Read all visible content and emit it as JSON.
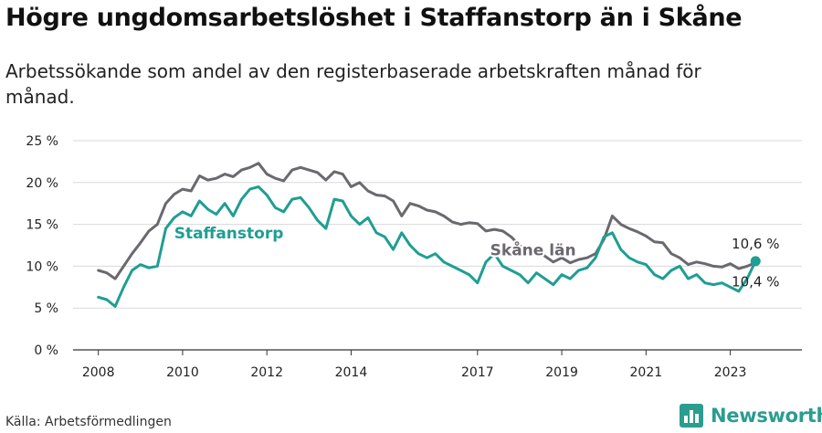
{
  "chart_data": {
    "type": "line",
    "title": "Högre ungdomsarbetslöshet i Staffanstorp än i Skåne",
    "subtitle": "Arbetssökande som andel av den registerbaserade arbetskraften månad för månad.",
    "xlabel": "",
    "ylabel": "",
    "ylim": [
      0,
      25
    ],
    "xlim": [
      2007.4,
      2024.7
    ],
    "y_ticks": [
      0,
      5,
      10,
      15,
      20,
      25
    ],
    "y_tick_labels": [
      "0 %",
      "5 %",
      "10 %",
      "15 %",
      "20 %",
      "25 %"
    ],
    "x_ticks": [
      2008,
      2010,
      2012,
      2014,
      2017,
      2019,
      2021,
      2023
    ],
    "x_tick_labels": [
      "2008",
      "2010",
      "2012",
      "2014",
      "2017",
      "2019",
      "2021",
      "2023"
    ],
    "grid": true,
    "series": [
      {
        "name": "Skåne län",
        "color": "#6b686e",
        "end_label": "10,4 %",
        "x": [
          2008.0,
          2008.2,
          2008.4,
          2008.6,
          2008.8,
          2009.0,
          2009.2,
          2009.4,
          2009.6,
          2009.8,
          2010.0,
          2010.2,
          2010.4,
          2010.6,
          2010.8,
          2011.0,
          2011.2,
          2011.4,
          2011.6,
          2011.8,
          2012.0,
          2012.2,
          2012.4,
          2012.6,
          2012.8,
          2013.0,
          2013.2,
          2013.4,
          2013.6,
          2013.8,
          2014.0,
          2014.2,
          2014.4,
          2014.6,
          2014.8,
          2015.0,
          2015.2,
          2015.4,
          2015.6,
          2015.8,
          2016.0,
          2016.2,
          2016.4,
          2016.6,
          2016.8,
          2017.0,
          2017.2,
          2017.4,
          2017.6,
          2017.8,
          2018.0,
          2018.2,
          2018.4,
          2018.6,
          2018.8,
          2019.0,
          2019.2,
          2019.4,
          2019.6,
          2019.8,
          2020.0,
          2020.2,
          2020.4,
          2020.6,
          2020.8,
          2021.0,
          2021.2,
          2021.4,
          2021.6,
          2021.8,
          2022.0,
          2022.2,
          2022.4,
          2022.6,
          2022.8,
          2023.0,
          2023.2,
          2023.4,
          2023.6
        ],
        "values": [
          9.5,
          9.2,
          8.5,
          10.0,
          11.5,
          12.8,
          14.2,
          15.0,
          17.5,
          18.6,
          19.2,
          19.0,
          20.8,
          20.3,
          20.5,
          21.0,
          20.7,
          21.5,
          21.8,
          22.3,
          21.0,
          20.5,
          20.2,
          21.5,
          21.8,
          21.5,
          21.2,
          20.3,
          21.3,
          21.0,
          19.5,
          20.0,
          19.0,
          18.5,
          18.4,
          17.8,
          16.0,
          17.5,
          17.2,
          16.7,
          16.5,
          16.0,
          15.3,
          15.0,
          15.2,
          15.1,
          14.2,
          14.4,
          14.2,
          13.5,
          12.5,
          11.5,
          11.8,
          11.2,
          10.5,
          11.0,
          10.4,
          10.8,
          11.0,
          11.5,
          13.2,
          16.0,
          15.0,
          14.5,
          14.1,
          13.6,
          12.9,
          12.8,
          11.5,
          11.0,
          10.2,
          10.5,
          10.3,
          10.0,
          9.9,
          10.3,
          9.7,
          10.0,
          10.4
        ]
      },
      {
        "name": "Staffanstorp",
        "color": "#1f9e94",
        "end_label": "10,6 %",
        "x": [
          2008.0,
          2008.2,
          2008.4,
          2008.6,
          2008.8,
          2009.0,
          2009.2,
          2009.4,
          2009.6,
          2009.8,
          2010.0,
          2010.2,
          2010.4,
          2010.6,
          2010.8,
          2011.0,
          2011.2,
          2011.4,
          2011.6,
          2011.8,
          2012.0,
          2012.2,
          2012.4,
          2012.6,
          2012.8,
          2013.0,
          2013.2,
          2013.4,
          2013.6,
          2013.8,
          2014.0,
          2014.2,
          2014.4,
          2014.6,
          2014.8,
          2015.0,
          2015.2,
          2015.4,
          2015.6,
          2015.8,
          2016.0,
          2016.2,
          2016.4,
          2016.6,
          2016.8,
          2017.0,
          2017.2,
          2017.4,
          2017.6,
          2017.8,
          2018.0,
          2018.2,
          2018.4,
          2018.6,
          2018.8,
          2019.0,
          2019.2,
          2019.4,
          2019.6,
          2019.8,
          2020.0,
          2020.2,
          2020.4,
          2020.6,
          2020.8,
          2021.0,
          2021.2,
          2021.4,
          2021.6,
          2021.8,
          2022.0,
          2022.2,
          2022.4,
          2022.6,
          2022.8,
          2023.0,
          2023.2,
          2023.4,
          2023.6
        ],
        "values": [
          6.3,
          6.0,
          5.2,
          7.5,
          9.5,
          10.2,
          9.8,
          10.0,
          14.5,
          15.8,
          16.5,
          16.0,
          17.8,
          16.8,
          16.2,
          17.5,
          16.0,
          18.0,
          19.2,
          19.5,
          18.5,
          17.0,
          16.5,
          18.0,
          18.2,
          17.0,
          15.5,
          14.5,
          18.0,
          17.8,
          16.0,
          15.0,
          15.8,
          14.0,
          13.5,
          12.0,
          14.0,
          12.5,
          11.5,
          11.0,
          11.5,
          10.5,
          10.0,
          9.5,
          9.0,
          8.0,
          10.5,
          11.5,
          10.0,
          9.5,
          9.0,
          8.0,
          9.2,
          8.5,
          7.8,
          9.0,
          8.5,
          9.5,
          9.8,
          11.0,
          13.5,
          14.0,
          12.0,
          11.0,
          10.5,
          10.2,
          9.0,
          8.5,
          9.5,
          10.0,
          8.5,
          9.0,
          8.0,
          7.8,
          8.0,
          7.5,
          7.0,
          8.5,
          10.6
        ]
      }
    ]
  },
  "source_text": "Källa: Arbetsförmedlingen",
  "brand_name": "Newsworthy",
  "brand_color": "#2a9d8f"
}
